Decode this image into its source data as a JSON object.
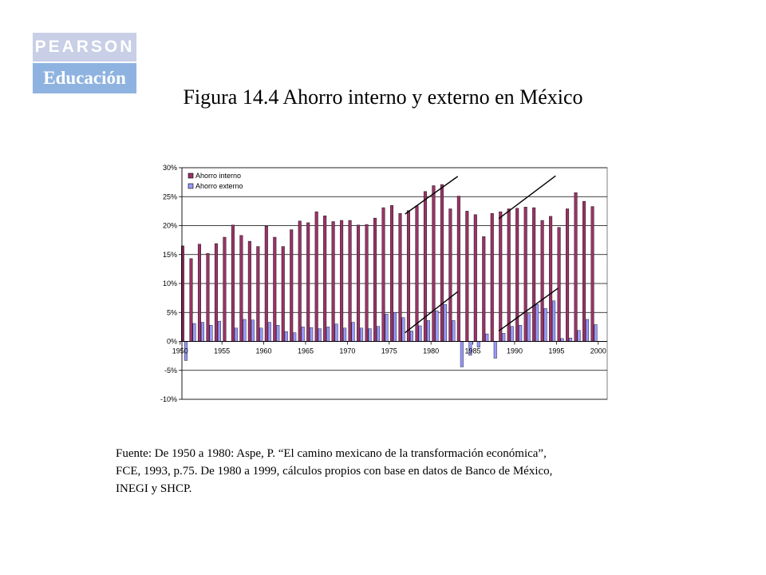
{
  "logo": {
    "top": "PEARSON",
    "bottom": "Educación"
  },
  "title": "Figura 14.4 Ahorro interno y externo en México",
  "source_lines": [
    "Fuente: De 1950 a 1980: Aspe, P. “El camino mexicano de la transformación económica”,",
    "FCE, 1993, p.75. De 1980 a 1999, cálculos propios con base en datos de Banco de México,",
    "INEGI y SHCP."
  ],
  "colors": {
    "interno": "#993366",
    "externo": "#9999ff",
    "grid": "#000000"
  },
  "chart_data": {
    "type": "bar",
    "x": [
      1950,
      1951,
      1952,
      1953,
      1954,
      1955,
      1956,
      1957,
      1958,
      1959,
      1960,
      1961,
      1962,
      1963,
      1964,
      1965,
      1966,
      1967,
      1968,
      1969,
      1970,
      1971,
      1972,
      1973,
      1974,
      1975,
      1976,
      1977,
      1978,
      1979,
      1980,
      1981,
      1982,
      1983,
      1984,
      1985,
      1986,
      1987,
      1988,
      1989,
      1990,
      1991,
      1992,
      1993,
      1994,
      1995,
      1996,
      1997,
      1998,
      1999
    ],
    "series": [
      {
        "name": "Ahorro interno",
        "values": [
          16.5,
          14.3,
          16.8,
          15.2,
          16.9,
          18.0,
          20.1,
          18.3,
          17.3,
          16.4,
          19.9,
          18.0,
          16.4,
          19.3,
          20.8,
          20.5,
          22.4,
          21.7,
          20.7,
          20.9,
          20.9,
          20.1,
          20.2,
          21.3,
          23.1,
          23.5,
          22.1,
          22.6,
          23.4,
          25.9,
          26.9,
          27.1,
          22.9,
          25.1,
          22.5,
          21.9,
          18.1,
          22.1,
          22.4,
          22.9,
          23.0,
          23.2,
          23.1,
          20.9,
          21.6,
          19.7,
          22.9,
          25.7,
          24.2,
          23.3
        ]
      },
      {
        "name": "Ahorro externo",
        "values": [
          -3.3,
          3.1,
          3.3,
          2.8,
          3.5,
          0.0,
          2.3,
          3.8,
          3.7,
          2.3,
          3.3,
          2.8,
          1.7,
          1.5,
          2.5,
          2.4,
          2.2,
          2.5,
          3.0,
          2.3,
          3.3,
          2.3,
          2.2,
          2.6,
          4.7,
          5.0,
          4.1,
          1.8,
          2.7,
          3.6,
          5.3,
          6.4,
          3.6,
          -4.4,
          -2.4,
          -1.0,
          1.3,
          -2.9,
          1.4,
          2.6,
          2.8,
          4.8,
          6.4,
          5.7,
          7.0,
          0.5,
          0.6,
          1.9,
          3.8,
          2.9
        ]
      }
    ],
    "xticks": [
      "1950",
      "1955",
      "1960",
      "1965",
      "1970",
      "1975",
      "1980",
      "1985",
      "1990",
      "1995",
      "2000"
    ],
    "yticks": [
      "30%",
      "25%",
      "20%",
      "15%",
      "10%",
      "5%",
      "0%",
      "-5%",
      "-10%"
    ],
    "ylim": [
      -10,
      30
    ],
    "grid": true,
    "legend_position": "top-left",
    "trend_lines": [
      {
        "from": [
          1976.4,
          22.0
        ],
        "to": [
          1982.7,
          28.5
        ]
      },
      {
        "from": [
          1976.4,
          1.5
        ],
        "to": [
          1982.7,
          8.6
        ]
      },
      {
        "from": [
          1987.6,
          21.2
        ],
        "to": [
          1994.4,
          28.6
        ]
      },
      {
        "from": [
          1987.6,
          1.8
        ],
        "to": [
          1994.7,
          9.2
        ]
      }
    ]
  }
}
